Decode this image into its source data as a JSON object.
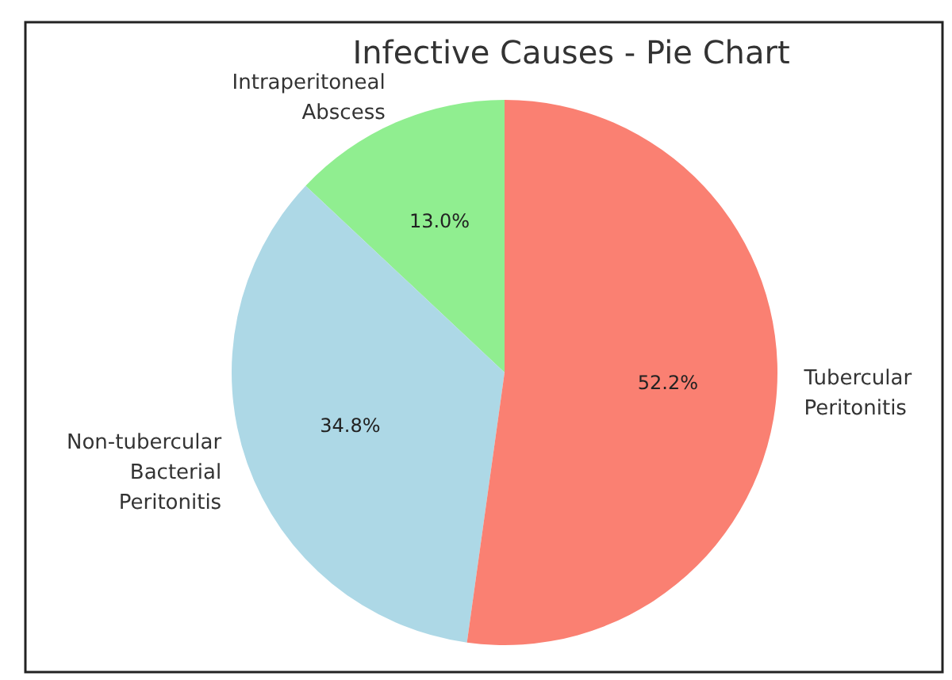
{
  "chart_data": {
    "type": "pie",
    "title": "Infective Causes - Pie Chart",
    "categories": [
      "Intraperitoneal Abscess",
      "Non-tubercular Bacterial Peritonitis",
      "Tubercular Peritonitis"
    ],
    "values": [
      13.0,
      34.8,
      52.2
    ],
    "colors": [
      "#90ee90",
      "#add8e6",
      "#fa8072"
    ],
    "value_labels": [
      "13.0%",
      "34.8%",
      "52.2%"
    ]
  }
}
